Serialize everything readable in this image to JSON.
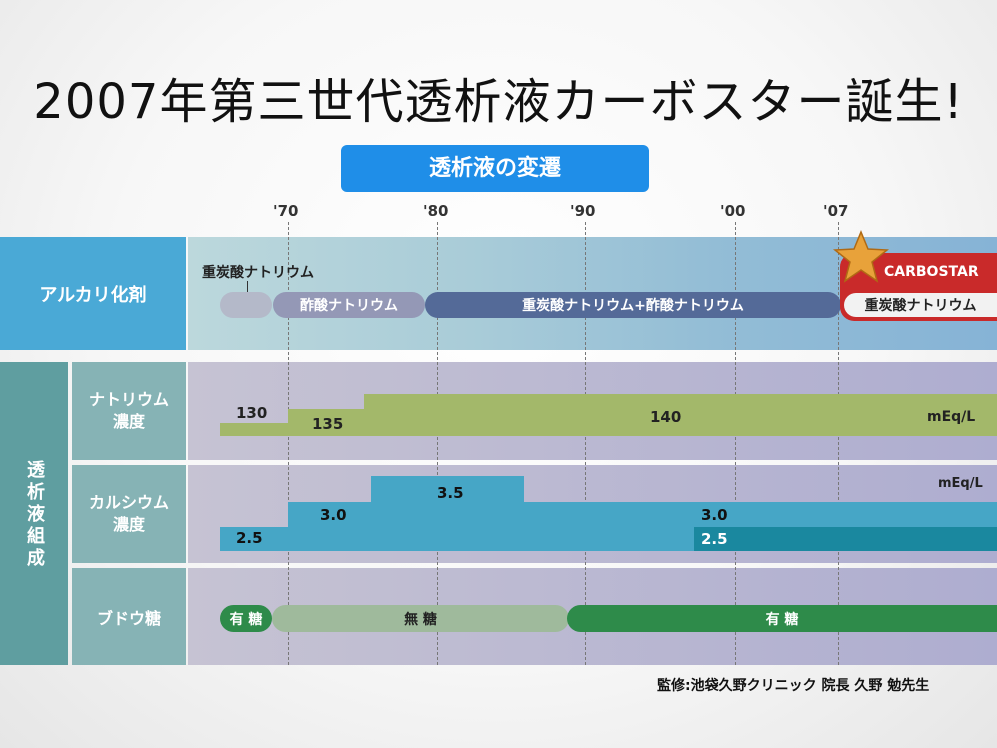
{
  "title": "2007年第三世代透析液カーボスター誕生!",
  "subtitle": "透析液の変遷",
  "years": [
    "'70",
    "'80",
    "'90",
    "'00",
    "'07"
  ],
  "row_labels": {
    "alkali": "アルカリ化剤",
    "composition": "透析液組成",
    "sodium": "ナトリウム\n濃度",
    "calcium": "カルシウム\n濃度",
    "glucose": "ブドウ糖"
  },
  "alkali": {
    "callout": "重炭酸ナトリウム",
    "acetate": "酢酸ナトリウム",
    "mixed": "重炭酸ナトリウム+酢酸ナトリウム",
    "carbostar_logo": "CARBOSTAR",
    "carbostar": "重炭酸ナトリウム"
  },
  "sodium": {
    "v1": "130",
    "v2": "135",
    "v3": "140",
    "unit": "mEq/L"
  },
  "calcium": {
    "v1": "2.5",
    "v2": "3.0",
    "v3": "3.5",
    "v4": "3.0",
    "v5": "2.5",
    "unit": "mEq/L"
  },
  "glucose": {
    "s1": "有 糖",
    "s2": "無 糖",
    "s3": "有 糖"
  },
  "footer": "監修:池袋久野クリニック 院長 久野 勉先生",
  "colors": {
    "accent_blue": "#1f8ee8",
    "alkali_label": "#4aa9d6",
    "composition_label": "#5f9ea0",
    "sodium_band": "#a3b86a",
    "calcium_band": "#46a6c6",
    "calcium_dark": "#1a889f",
    "glucose_green": "#2e8b4a",
    "carbostar_red": "#c92a2a"
  }
}
